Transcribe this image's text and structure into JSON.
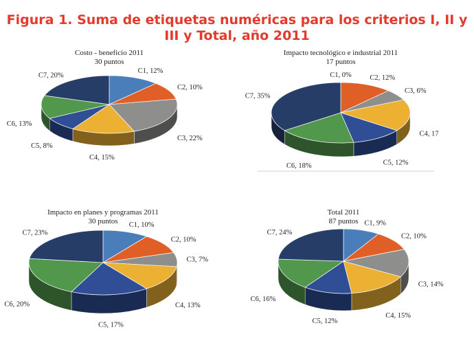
{
  "figure_title": "Figura 1. Suma de etiquetas numéricas para los criterios I, II y III y Total, año 2011",
  "colors": {
    "title": "#e23a2c",
    "C1": "#4a7ebb",
    "C2": "#df5f27",
    "C3": "#8e8e8c",
    "C4": "#ecb032",
    "C5": "#2f4e96",
    "C6": "#52984c",
    "C7": "#263d68"
  },
  "chart_data": [
    {
      "type": "pie",
      "title": "Costo - beneficio 2011",
      "subtitle": "30 puntos",
      "categories": [
        "C1",
        "C2",
        "C3",
        "C4",
        "C5",
        "C6",
        "C7"
      ],
      "values": [
        12,
        10,
        22,
        15,
        8,
        13,
        20
      ],
      "labels": [
        "C1, 12%",
        "C2, 10%",
        "C3, 22%",
        "C4, 15%",
        "C5, 8%",
        "C6, 13%",
        "C7, 20%"
      ]
    },
    {
      "type": "pie",
      "title": "Impacto tecnológico e industrial 2011",
      "subtitle": "17 puntos",
      "categories": [
        "C1",
        "C2",
        "C3",
        "C4",
        "C5",
        "C6",
        "C7"
      ],
      "values": [
        0,
        12,
        6,
        17,
        12,
        18,
        35
      ],
      "labels": [
        "C1, 0%",
        "C2, 12%",
        "C3, 6%",
        "C4, 17",
        "C5, 12%",
        "C6, 18%",
        "C7, 35%"
      ]
    },
    {
      "type": "pie",
      "title": "Impacto en planes y programas 2011",
      "subtitle": "30 puntos",
      "categories": [
        "C1",
        "C2",
        "C3",
        "C4",
        "C5",
        "C6",
        "C7"
      ],
      "values": [
        10,
        10,
        7,
        13,
        17,
        20,
        23
      ],
      "labels": [
        "C1, 10%",
        "C2, 10%",
        "C3, 7%",
        "C4, 13%",
        "C5, 17%",
        "C6, 20%",
        "C7, 23%"
      ]
    },
    {
      "type": "pie",
      "title": "Total 2011",
      "subtitle": "87 puntos",
      "categories": [
        "C1",
        "C2",
        "C3",
        "C4",
        "C5",
        "C6",
        "C7"
      ],
      "values": [
        9,
        10,
        14,
        15,
        12,
        16,
        24
      ],
      "labels": [
        "C1, 9%",
        "C2, 10%",
        "C3, 14%",
        "C4, 15%",
        "C5, 12%",
        "C6, 16%",
        "C7, 24%"
      ]
    }
  ]
}
